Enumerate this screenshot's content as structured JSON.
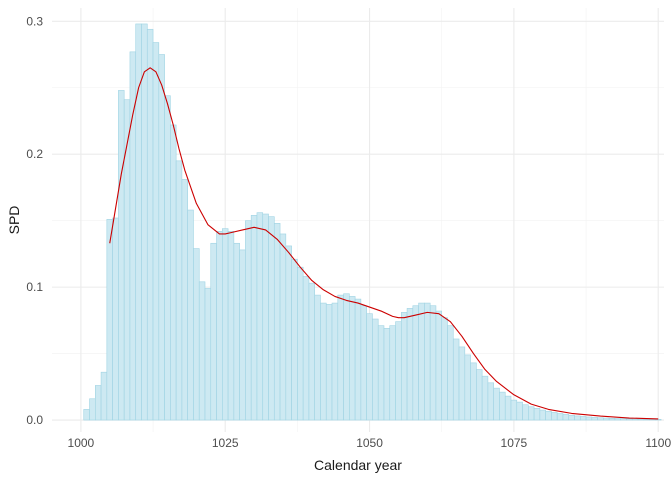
{
  "chart_data": {
    "type": "bar",
    "xlabel": "Calendar year",
    "ylabel": "SPD",
    "xlim": [
      995,
      1101
    ],
    "ylim": [
      -0.009,
      0.31
    ],
    "x_ticks": [
      1000,
      1025,
      1050,
      1075,
      1100
    ],
    "x_tick_labels": [
      "1000",
      "1025",
      "1050",
      "1075",
      "1100"
    ],
    "y_ticks": [
      0.0,
      0.1,
      0.2,
      0.3
    ],
    "y_tick_labels": [
      "0.0",
      "0.1",
      "0.2",
      "0.3"
    ],
    "grid": true,
    "legend": "none",
    "bar_fill": "#cde9f2",
    "bar_stroke": "#9fd3e3",
    "line_color": "#cc0000",
    "bar_series": {
      "years": [
        1001,
        1002,
        1003,
        1004,
        1005,
        1006,
        1007,
        1008,
        1009,
        1010,
        1011,
        1012,
        1013,
        1014,
        1015,
        1016,
        1017,
        1018,
        1019,
        1020,
        1021,
        1022,
        1023,
        1024,
        1025,
        1026,
        1027,
        1028,
        1029,
        1030,
        1031,
        1032,
        1033,
        1034,
        1035,
        1036,
        1037,
        1038,
        1039,
        1040,
        1041,
        1042,
        1043,
        1044,
        1045,
        1046,
        1047,
        1048,
        1049,
        1050,
        1051,
        1052,
        1053,
        1054,
        1055,
        1056,
        1057,
        1058,
        1059,
        1060,
        1061,
        1062,
        1063,
        1064,
        1065,
        1066,
        1067,
        1068,
        1069,
        1070,
        1071,
        1072,
        1073,
        1074,
        1075,
        1076,
        1077,
        1078,
        1079,
        1080,
        1081,
        1082,
        1083,
        1084,
        1085,
        1086,
        1087,
        1088,
        1089,
        1090,
        1091,
        1092,
        1093,
        1094,
        1095,
        1096,
        1097,
        1098,
        1099,
        1100
      ],
      "values": [
        0.008,
        0.016,
        0.026,
        0.036,
        0.151,
        0.152,
        0.248,
        0.241,
        0.277,
        0.298,
        0.298,
        0.294,
        0.284,
        0.275,
        0.244,
        0.222,
        0.195,
        0.181,
        0.158,
        0.129,
        0.104,
        0.099,
        0.133,
        0.142,
        0.144,
        0.142,
        0.133,
        0.128,
        0.15,
        0.154,
        0.156,
        0.155,
        0.153,
        0.148,
        0.14,
        0.131,
        0.121,
        0.115,
        0.108,
        0.103,
        0.094,
        0.088,
        0.087,
        0.088,
        0.094,
        0.095,
        0.093,
        0.091,
        0.086,
        0.08,
        0.076,
        0.071,
        0.069,
        0.071,
        0.074,
        0.081,
        0.084,
        0.086,
        0.088,
        0.088,
        0.086,
        0.082,
        0.077,
        0.071,
        0.061,
        0.055,
        0.049,
        0.043,
        0.038,
        0.033,
        0.028,
        0.024,
        0.021,
        0.018,
        0.015,
        0.0135,
        0.0115,
        0.01,
        0.0088,
        0.0075,
        0.0065,
        0.0057,
        0.0049,
        0.0042,
        0.0036,
        0.0031,
        0.0027,
        0.0023,
        0.002,
        0.0017,
        0.0015,
        0.0013,
        0.0011,
        0.001,
        0.0009,
        0.0008,
        0.0007,
        0.0006,
        0.0005,
        0.0005
      ]
    },
    "line_series": {
      "x": [
        1005,
        1007,
        1009,
        1010,
        1011,
        1012,
        1013,
        1014,
        1015,
        1016,
        1017,
        1018,
        1020,
        1022,
        1024,
        1025,
        1026,
        1028,
        1030,
        1032,
        1034,
        1036,
        1038,
        1040,
        1042,
        1044,
        1046,
        1048,
        1050,
        1052,
        1054,
        1055,
        1056,
        1058,
        1060,
        1062,
        1064,
        1066,
        1068,
        1070,
        1072,
        1075,
        1078,
        1081,
        1085,
        1090,
        1095,
        1100
      ],
      "y": [
        0.133,
        0.185,
        0.23,
        0.25,
        0.262,
        0.265,
        0.262,
        0.252,
        0.238,
        0.222,
        0.204,
        0.188,
        0.163,
        0.147,
        0.14,
        0.14,
        0.141,
        0.143,
        0.145,
        0.143,
        0.136,
        0.126,
        0.115,
        0.105,
        0.098,
        0.093,
        0.09,
        0.088,
        0.085,
        0.082,
        0.078,
        0.077,
        0.077,
        0.079,
        0.081,
        0.08,
        0.074,
        0.063,
        0.05,
        0.038,
        0.029,
        0.019,
        0.012,
        0.008,
        0.005,
        0.003,
        0.0015,
        0.0008
      ]
    }
  }
}
